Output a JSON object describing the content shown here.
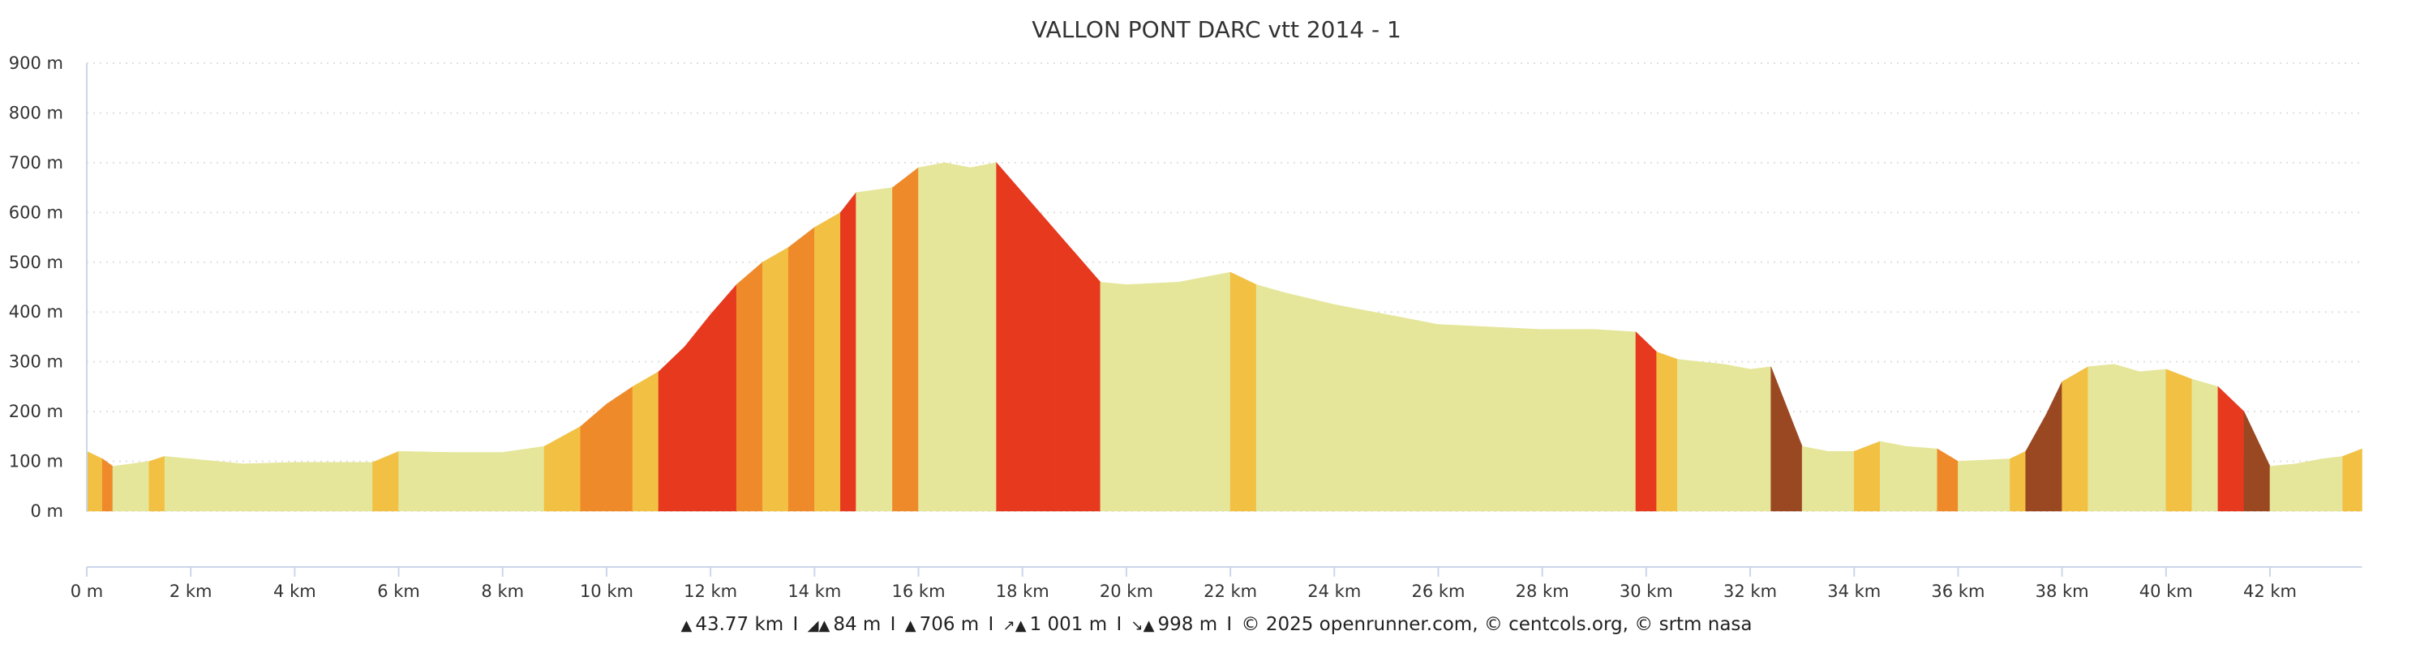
{
  "chart_data": {
    "type": "area",
    "title": "VALLON PONT DARC vtt 2014 - 1",
    "xlabel": "",
    "ylabel": "",
    "xlim": [
      0,
      43.77
    ],
    "ylim": [
      0,
      900
    ],
    "grid": true,
    "x_ticks": [
      0,
      2,
      4,
      6,
      8,
      10,
      12,
      14,
      16,
      18,
      20,
      22,
      24,
      26,
      28,
      30,
      32,
      34,
      36,
      38,
      40,
      42
    ],
    "x_tick_labels": [
      "0 m",
      "2 km",
      "4 km",
      "6 km",
      "8 km",
      "10 km",
      "12 km",
      "14 km",
      "16 km",
      "18 km",
      "20 km",
      "22 km",
      "24 km",
      "26 km",
      "28 km",
      "30 km",
      "32 km",
      "34 km",
      "36 km",
      "38 km",
      "40 km",
      "42 km"
    ],
    "y_ticks": [
      0,
      100,
      200,
      300,
      400,
      500,
      600,
      700,
      800,
      900
    ],
    "y_tick_labels": [
      "0 m",
      "100 m",
      "200 m",
      "300 m",
      "400 m",
      "500 m",
      "600 m",
      "700 m",
      "800 m",
      "900 m"
    ],
    "x_km": [
      0,
      0.3,
      0.5,
      1.2,
      1.5,
      2,
      3,
      4,
      5.5,
      6,
      7,
      8,
      8.8,
      9.5,
      10,
      10.5,
      11,
      11.5,
      12,
      12.5,
      13,
      13.5,
      14,
      14.5,
      14.8,
      15.5,
      16,
      16.5,
      17,
      17.5,
      18,
      18.5,
      19,
      19.5,
      20,
      21,
      21.5,
      22,
      22.5,
      23,
      24,
      25,
      26,
      27,
      28,
      29,
      29.8,
      30.2,
      30.6,
      31.5,
      32,
      32.4,
      33,
      33.5,
      34,
      34.5,
      35,
      35.6,
      36,
      37,
      37.3,
      37.7,
      38,
      38.5,
      39,
      39.5,
      40,
      40.5,
      41,
      41.5,
      42,
      42.5,
      43,
      43.4,
      43.77
    ],
    "elevation_m": [
      120,
      105,
      90,
      100,
      110,
      105,
      95,
      98,
      98,
      120,
      118,
      118,
      130,
      170,
      215,
      250,
      280,
      330,
      395,
      455,
      500,
      530,
      570,
      600,
      640,
      650,
      690,
      700,
      690,
      700,
      640,
      580,
      520,
      460,
      455,
      460,
      470,
      480,
      455,
      440,
      415,
      395,
      375,
      370,
      365,
      365,
      360,
      320,
      305,
      295,
      285,
      290,
      130,
      120,
      120,
      140,
      130,
      125,
      100,
      105,
      120,
      195,
      260,
      290,
      295,
      280,
      285,
      265,
      250,
      200,
      90,
      95,
      105,
      110,
      125
    ],
    "slope_classes": [
      {
        "max_pct": 3,
        "color": "#e5e69a"
      },
      {
        "max_pct": 6,
        "color": "#f2c043"
      },
      {
        "max_pct": 9,
        "color": "#ef8a2b"
      },
      {
        "max_pct": 15,
        "color": "#e6391e"
      },
      {
        "max_pct": 100,
        "color": "#9a4822"
      }
    ],
    "gridline_color": "#e0e0e0",
    "axis_color": "#ccd6eb"
  },
  "footer": {
    "distance": "43.77 km",
    "min_alt": "84 m",
    "max_alt": "706 m",
    "ascent": "1 001 m",
    "descent": "998 m",
    "separator": "I",
    "credits": "© 2025 openrunner.com, © centcols.org, © srtm nasa",
    "icons": [
      "distance-icon",
      "min-altitude-icon",
      "max-altitude-icon",
      "ascent-icon",
      "descent-icon"
    ]
  }
}
